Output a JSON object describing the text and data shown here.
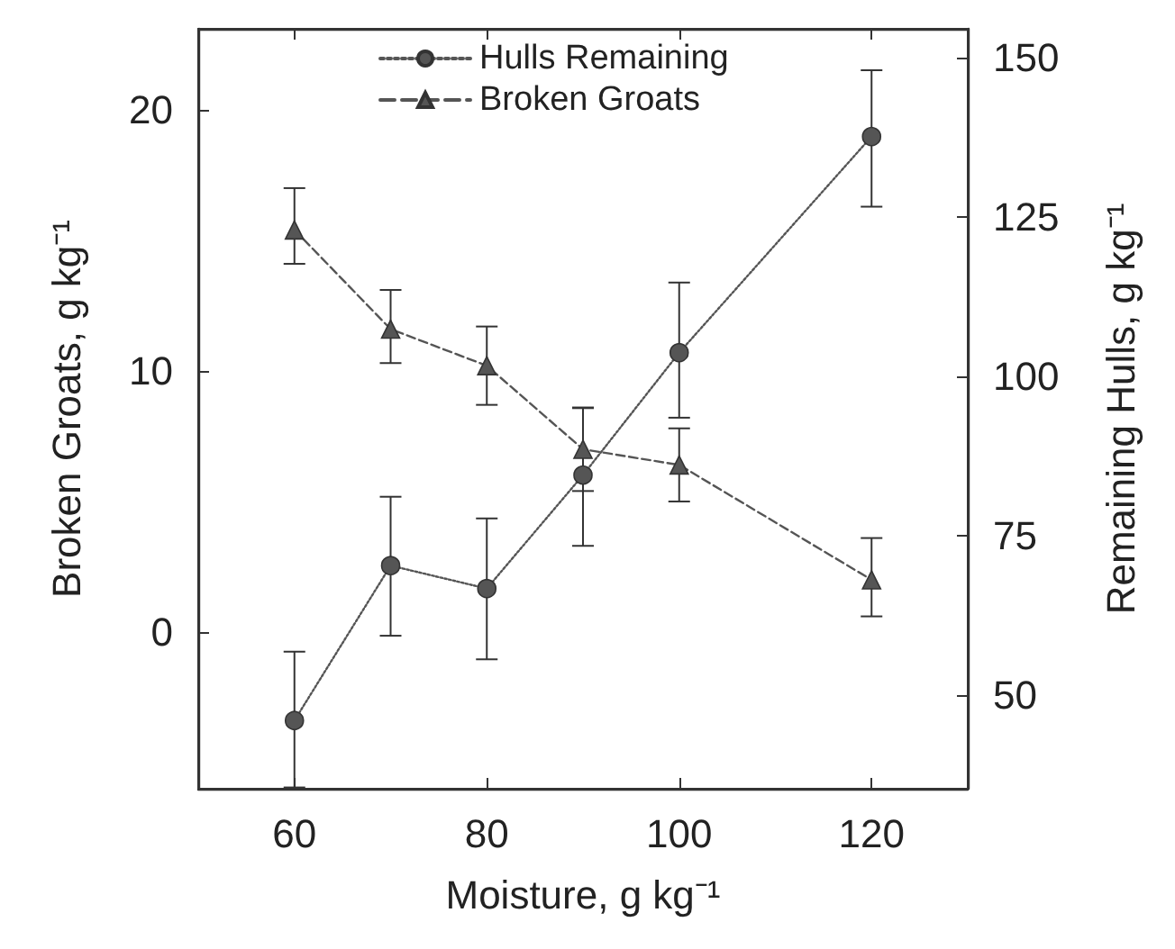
{
  "chart_data": {
    "type": "line",
    "xlabel": "Moisture, g kg⁻¹",
    "ylabel": "Broken Groats, g kg⁻¹",
    "y2label": "Remaining Hulls, g kg⁻¹",
    "x": [
      60,
      70,
      80,
      90,
      100,
      120
    ],
    "series": [
      {
        "name": "Hulls Remaining",
        "color": "#555555",
        "axis": "y2",
        "marker": "circle",
        "line_style": "dotted",
        "values": [
          46.0,
          70.3,
          66.7,
          84.5,
          103.7,
          137.6
        ],
        "errors": [
          [
            35.5,
            56.8
          ],
          [
            59.3,
            81.1
          ],
          [
            55.6,
            77.7
          ],
          [
            73.4,
            95.0
          ],
          [
            93.5,
            114.7
          ],
          [
            126.6,
            148.0
          ]
        ]
      },
      {
        "name": "Broken Groats",
        "color": "#555555",
        "marker": "triangle",
        "line_style": "dashed",
        "values": [
          15.4,
          11.6,
          10.2,
          7.0,
          6.4,
          2.0
        ],
        "errors": [
          [
            14.1,
            17.0
          ],
          [
            10.3,
            13.1
          ],
          [
            8.7,
            11.7
          ],
          [
            5.4,
            8.6
          ],
          [
            5.0,
            7.8
          ],
          [
            0.6,
            3.6
          ]
        ]
      }
    ],
    "xlim": [
      50,
      130
    ],
    "xticks": [
      60,
      80,
      100,
      120
    ],
    "ylim": [
      -6,
      23.1
    ],
    "yticks": [
      0,
      10,
      20
    ],
    "y2lim": [
      35.3,
      154.5
    ],
    "y2ticks": [
      50,
      75,
      100,
      125,
      150
    ],
    "legend": "top",
    "grid": false
  }
}
